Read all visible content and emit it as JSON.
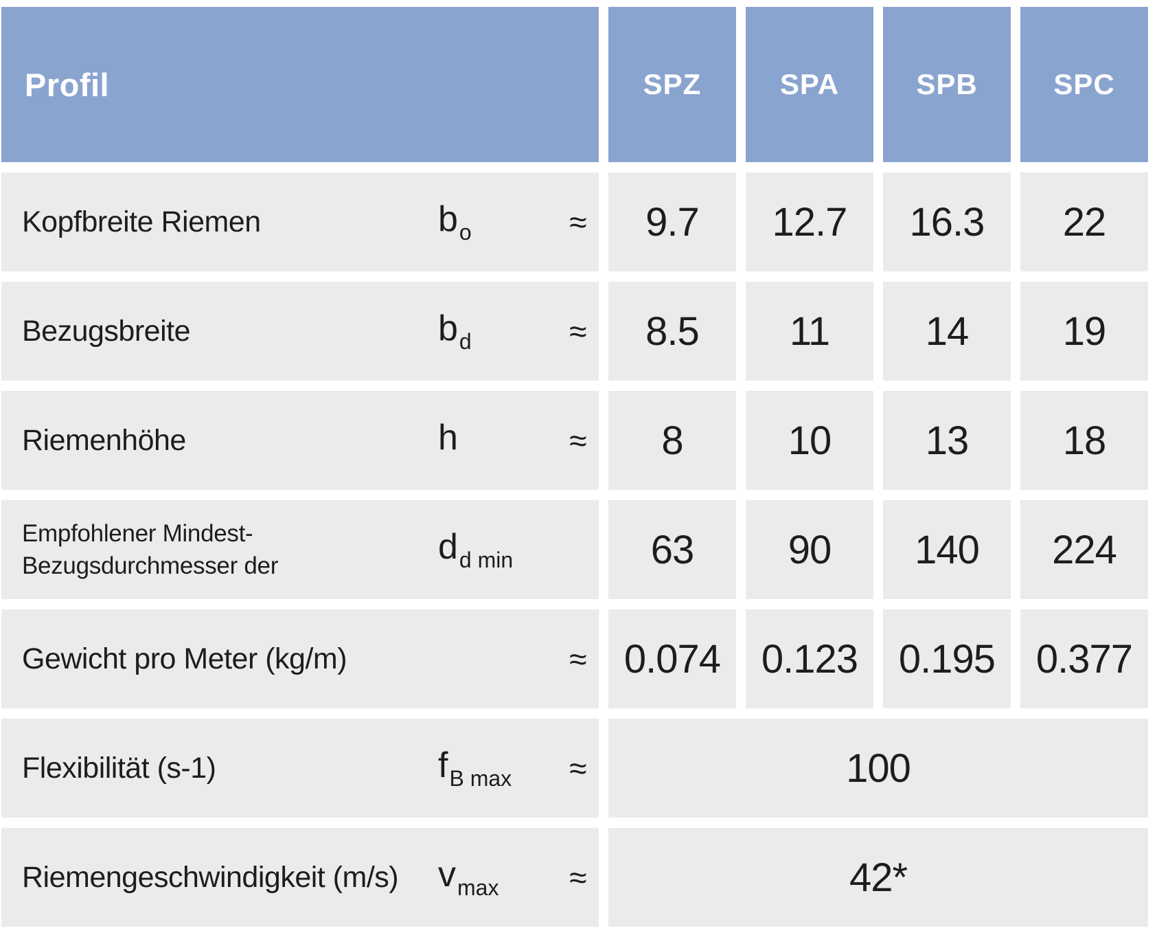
{
  "colors": {
    "header_bg": "#8aa4d0",
    "header_text": "#ffffff",
    "cell_bg": "#ebebeb",
    "body_text": "#1d1d1b",
    "page_bg": "#ffffff"
  },
  "header": {
    "label": "Profil",
    "columns": [
      "SPZ",
      "SPA",
      "SPB",
      "SPC"
    ]
  },
  "rows": [
    {
      "label": "Kopfbreite Riemen",
      "symbol": {
        "base": "b",
        "sub": "o"
      },
      "approx": "≈",
      "values": [
        "9.7",
        "12.7",
        "16.3",
        "22"
      ]
    },
    {
      "label": "Bezugsbreite",
      "symbol": {
        "base": "b",
        "sub": "d"
      },
      "approx": "≈",
      "values": [
        "8.5",
        "11",
        "14",
        "19"
      ]
    },
    {
      "label": "Riemenhöhe",
      "symbol": {
        "base": "h",
        "sub": ""
      },
      "approx": "≈",
      "values": [
        "8",
        "10",
        "13",
        "18"
      ]
    },
    {
      "label_line1": "Empfohlener Mindest-",
      "label_line2": "Bezugsdurchmesser der",
      "symbol": {
        "base": "d",
        "sub": "d min"
      },
      "approx": "",
      "values": [
        "63",
        "90",
        "140",
        "224"
      ]
    },
    {
      "label": "Gewicht pro Meter (kg/m)",
      "symbol": {
        "base": "",
        "sub": ""
      },
      "approx": "≈",
      "values": [
        "0.074",
        "0.123",
        "0.195",
        "0.377"
      ]
    },
    {
      "label": "Flexibilität (s-1)",
      "symbol": {
        "base": "f",
        "sub": "B max"
      },
      "approx": "≈",
      "merged_value": "100"
    },
    {
      "label": "Riemengeschwindigkeit (m/s)",
      "symbol": {
        "base": "v",
        "sub": "max"
      },
      "approx": "≈",
      "merged_value": "42*"
    }
  ]
}
